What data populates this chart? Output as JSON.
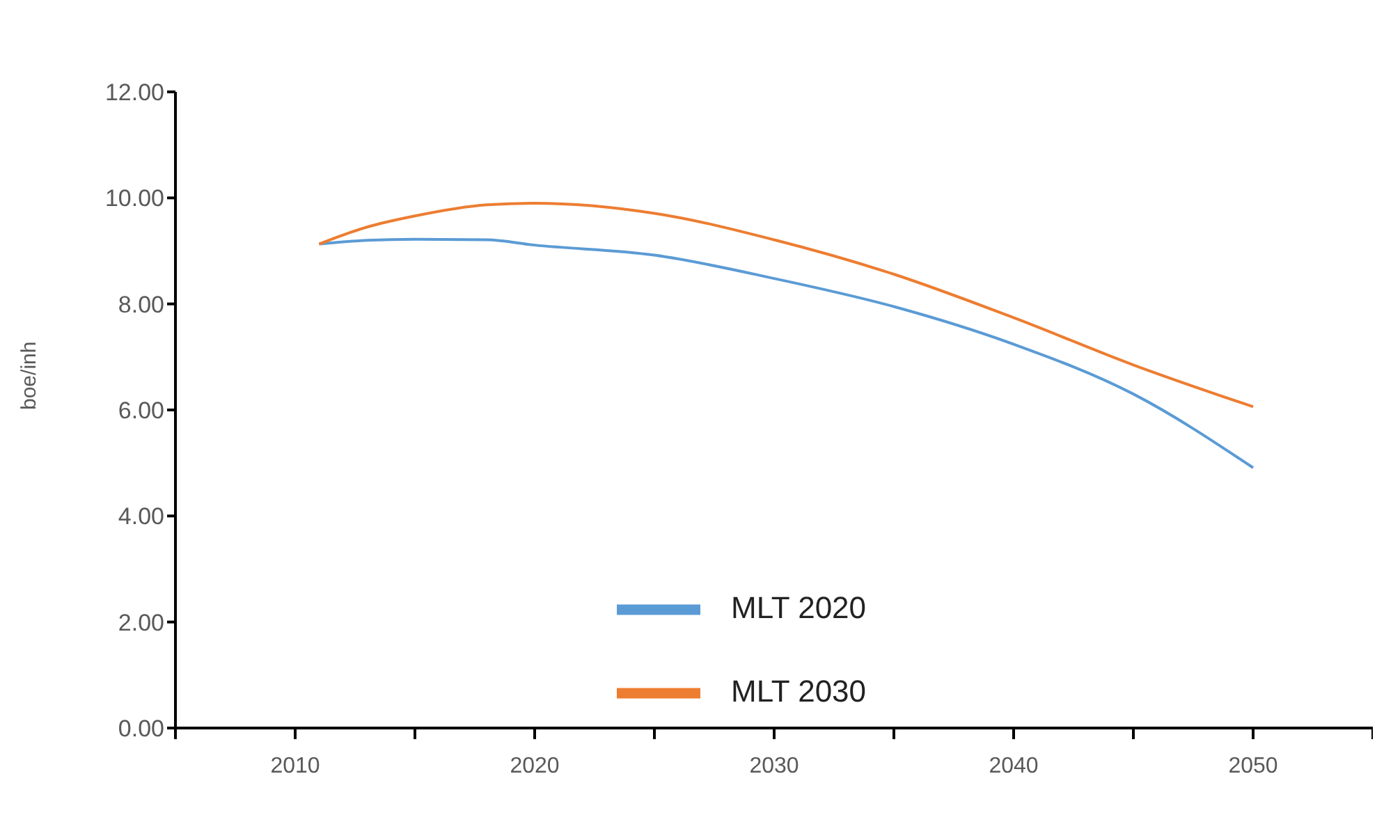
{
  "chart_data": {
    "type": "line",
    "ylabel": "boe/inh",
    "x": [
      2011,
      2013,
      2015,
      2018,
      2020,
      2025,
      2030,
      2035,
      2040,
      2045,
      2050
    ],
    "series": [
      {
        "name": "MLT 2020",
        "color": "#5b9bd5",
        "values": [
          9.13,
          9.2,
          9.22,
          9.21,
          9.11,
          8.92,
          8.48,
          7.95,
          7.24,
          6.3,
          4.91
        ]
      },
      {
        "name": "MLT 2030",
        "color": "#ed7d31",
        "values": [
          9.13,
          9.45,
          9.66,
          9.87,
          9.9,
          9.71,
          9.21,
          8.56,
          7.74,
          6.85,
          6.06
        ]
      }
    ],
    "xlim": [
      2005,
      2055
    ],
    "xticks": [
      {
        "value": 2005,
        "label": null
      },
      2010,
      {
        "value": 2015,
        "label": null
      },
      2020,
      {
        "value": 2025,
        "label": null
      },
      2030,
      {
        "value": 2035,
        "label": null
      },
      2040,
      {
        "value": 2045,
        "label": null
      },
      2050,
      {
        "value": 2055,
        "label": null
      }
    ],
    "ylim": [
      0,
      12
    ],
    "yticks": [
      {
        "value": 0,
        "label": "0.00"
      },
      {
        "value": 2,
        "label": "2.00"
      },
      {
        "value": 4,
        "label": "4.00"
      },
      {
        "value": 6,
        "label": "6.00"
      },
      {
        "value": 8,
        "label": "8.00"
      },
      {
        "value": 10,
        "label": "10.00"
      },
      {
        "value": 12,
        "label": "12.00"
      }
    ],
    "grid": false,
    "legend": "bottom",
    "marker": "none",
    "line_style": "solid"
  }
}
